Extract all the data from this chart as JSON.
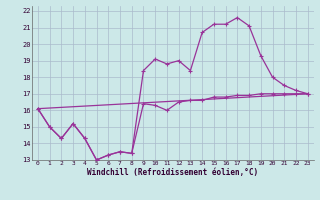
{
  "xlabel": "Windchill (Refroidissement éolien,°C)",
  "bg_color": "#cce8e8",
  "grid_color": "#aabbcc",
  "line_color": "#993399",
  "markersize": 3,
  "linewidth": 0.9,
  "xlim": [
    -0.5,
    23.5
  ],
  "ylim": [
    13,
    22.3
  ],
  "xticks": [
    0,
    1,
    2,
    3,
    4,
    5,
    6,
    7,
    8,
    9,
    10,
    11,
    12,
    13,
    14,
    15,
    16,
    17,
    18,
    19,
    20,
    21,
    22,
    23
  ],
  "yticks": [
    13,
    14,
    15,
    16,
    17,
    18,
    19,
    20,
    21,
    22
  ],
  "line1_x": [
    0,
    1,
    2,
    3,
    4,
    5,
    6,
    7,
    8,
    9,
    10,
    11,
    12,
    13,
    14,
    15,
    16,
    17,
    18,
    19,
    20,
    21,
    22,
    23
  ],
  "line1_y": [
    16.1,
    15.0,
    14.3,
    15.2,
    14.3,
    13.0,
    13.3,
    13.5,
    13.4,
    16.4,
    16.3,
    16.0,
    16.5,
    16.6,
    16.6,
    16.8,
    16.8,
    16.9,
    16.9,
    17.0,
    17.0,
    17.0,
    17.0,
    17.0
  ],
  "line2_x": [
    0,
    1,
    2,
    3,
    4,
    5,
    6,
    7,
    8,
    9,
    10,
    11,
    12,
    13,
    14,
    15,
    16,
    17,
    18,
    19,
    20,
    21,
    22,
    23
  ],
  "line2_y": [
    16.1,
    15.0,
    14.3,
    15.2,
    14.3,
    13.0,
    13.3,
    13.5,
    13.4,
    18.4,
    19.1,
    18.8,
    19.0,
    18.4,
    20.7,
    21.2,
    21.2,
    21.6,
    21.1,
    19.3,
    18.0,
    17.5,
    17.2,
    17.0
  ],
  "line3_x": [
    0,
    23
  ],
  "line3_y": [
    16.1,
    17.0
  ]
}
